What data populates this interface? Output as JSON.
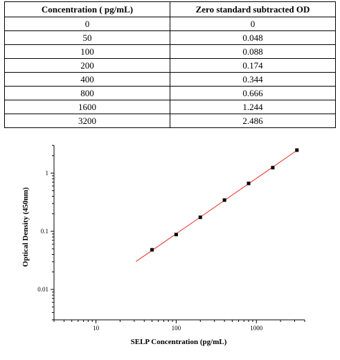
{
  "table": {
    "headers": [
      "Concentration ( pg/mL)",
      "Zero standard subtracted OD"
    ],
    "rows": [
      [
        "0",
        "0"
      ],
      [
        "50",
        "0.048"
      ],
      [
        "100",
        "0.088"
      ],
      [
        "200",
        "0.174"
      ],
      [
        "400",
        "0.344"
      ],
      [
        "800",
        "0.666"
      ],
      [
        "1600",
        "1.244"
      ],
      [
        "3200",
        "2.486"
      ]
    ]
  },
  "chart_data": {
    "type": "scatter",
    "x_scale": "log",
    "y_scale": "log",
    "xlabel": "SELP Concentration (pg/mL)",
    "ylabel": "Optical Density (450nm)",
    "xlim": [
      3,
      4000
    ],
    "ylim": [
      0.003,
      3
    ],
    "x_ticks": [
      10,
      100,
      1000
    ],
    "x_tick_labels": [
      "10",
      "100",
      "1000"
    ],
    "y_ticks": [
      0.01,
      0.1,
      1
    ],
    "y_tick_labels": [
      "0.01",
      "0.1",
      "1"
    ],
    "grid": false,
    "points": {
      "x": [
        50,
        100,
        200,
        400,
        800,
        1600,
        3200
      ],
      "y": [
        0.048,
        0.088,
        0.174,
        0.344,
        0.666,
        1.244,
        2.486
      ],
      "color": "#000000"
    },
    "fit_line": {
      "x_range": [
        31.6,
        3200
      ],
      "color": "#e8281e"
    }
  }
}
